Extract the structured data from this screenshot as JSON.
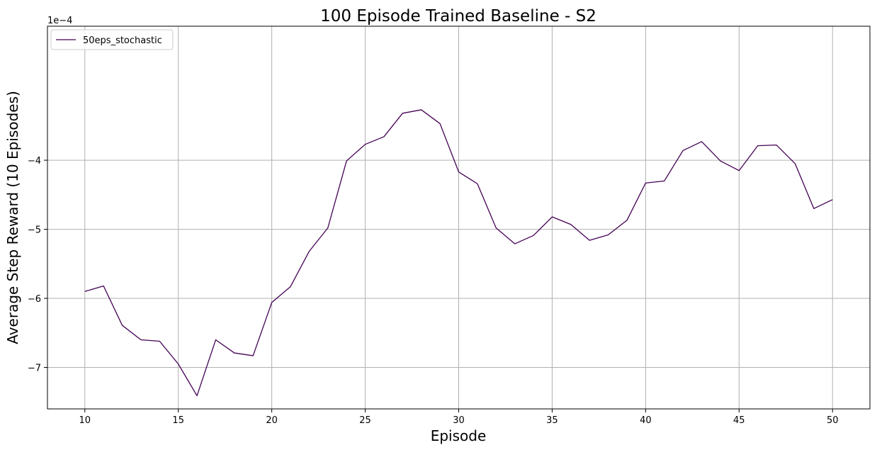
{
  "chart_data": {
    "type": "line",
    "title": "100 Episode Trained Baseline - S2",
    "xlabel": "Episode",
    "ylabel": "Average Step Reward (10 Episodes)",
    "y_offset_label": "1e−4",
    "xlim": [
      8,
      52
    ],
    "ylim": [
      -7.6,
      -2.06
    ],
    "xticks": [
      10,
      15,
      20,
      25,
      30,
      35,
      40,
      45,
      50
    ],
    "yticks": [
      -7,
      -6,
      -5,
      -4
    ],
    "ytick_labels": [
      "−7",
      "−6",
      "−5",
      "−4"
    ],
    "grid": true,
    "legend_position": "top-left",
    "series": [
      {
        "name": "50eps_stochastic",
        "color": "#440154",
        "x": [
          10,
          11,
          12,
          13,
          14,
          15,
          16,
          17,
          18,
          19,
          20,
          21,
          22,
          23,
          24,
          25,
          26,
          27,
          28,
          29,
          30,
          31,
          32,
          33,
          34,
          35,
          36,
          37,
          38,
          39,
          40,
          41,
          42,
          43,
          44,
          45,
          46,
          47,
          48,
          49,
          50
        ],
        "y": [
          -5.9,
          -5.82,
          -6.39,
          -6.6,
          -6.62,
          -6.95,
          -7.41,
          -6.6,
          -6.79,
          -6.83,
          -6.06,
          -5.83,
          -5.32,
          -4.98,
          -4.01,
          -3.77,
          -3.66,
          -3.32,
          -3.27,
          -3.47,
          -4.17,
          -4.34,
          -4.98,
          -5.21,
          -5.09,
          -4.82,
          -4.93,
          -5.16,
          -5.08,
          -4.87,
          -4.33,
          -4.3,
          -3.86,
          -3.73,
          -4.01,
          -4.15,
          -3.79,
          -3.78,
          -4.05,
          -4.7,
          -4.57
        ]
      }
    ]
  }
}
